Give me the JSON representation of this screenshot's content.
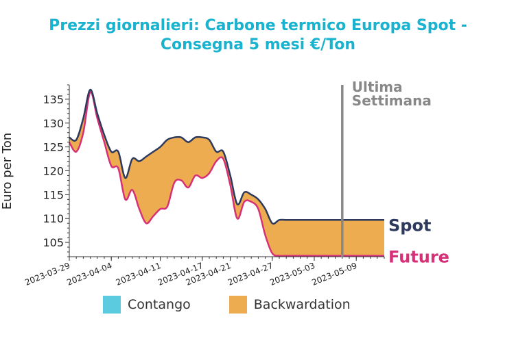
{
  "colors": {
    "title": "#1ab3cf",
    "spot": "#2d3a5e",
    "future": "#d63177",
    "contango": "#5bcbe0",
    "backwardation": "#ecac4f",
    "annotation": "#888888"
  },
  "chart_data": {
    "type": "area",
    "title_line1": "Prezzi giornalieri: Carbone termico Europa Spot -",
    "title_line2": "Consegna 5 mesi €/Ton",
    "ylabel": "Euro per Ton",
    "ylim": [
      102,
      138
    ],
    "yticks": [
      105,
      110,
      115,
      120,
      125,
      130,
      135
    ],
    "xlim": [
      "2023-03-29",
      "2023-05-13"
    ],
    "xticks": [
      "2023-03-29",
      "2023-04-04",
      "2023-04-11",
      "2023-04-17",
      "2023-04-21",
      "2023-04-27",
      "2023-05-03",
      "2023-05-09"
    ],
    "grid": false,
    "annotation": {
      "line1": "Ultima",
      "line2": "Settimana",
      "x": "2023-05-07"
    },
    "end_labels": {
      "spot": "Spot",
      "future": "Future"
    },
    "legend": {
      "placement": "bottom",
      "contango": "Contango",
      "backwardation": "Backwardation"
    },
    "x": [
      "2023-03-29",
      "2023-03-30",
      "2023-03-31",
      "2023-04-01",
      "2023-04-02",
      "2023-04-03",
      "2023-04-04",
      "2023-04-05",
      "2023-04-06",
      "2023-04-07",
      "2023-04-08",
      "2023-04-09",
      "2023-04-10",
      "2023-04-11",
      "2023-04-12",
      "2023-04-13",
      "2023-04-14",
      "2023-04-15",
      "2023-04-16",
      "2023-04-17",
      "2023-04-18",
      "2023-04-19",
      "2023-04-20",
      "2023-04-21",
      "2023-04-22",
      "2023-04-23",
      "2023-04-24",
      "2023-04-25",
      "2023-04-26",
      "2023-04-27",
      "2023-04-28",
      "2023-04-29",
      "2023-04-30",
      "2023-05-01",
      "2023-05-02",
      "2023-05-03",
      "2023-05-04",
      "2023-05-05",
      "2023-05-06",
      "2023-05-07",
      "2023-05-08",
      "2023-05-09",
      "2023-05-10",
      "2023-05-11",
      "2023-05-12",
      "2023-05-13"
    ],
    "series": [
      {
        "name": "Spot",
        "values": [
          127,
          126.5,
          131,
          137,
          132,
          127.5,
          124,
          124,
          118.5,
          122.5,
          122,
          123,
          124,
          125,
          126.5,
          127,
          127,
          126,
          127,
          127,
          126.5,
          124,
          124,
          119,
          113,
          115.5,
          115,
          114,
          112,
          109,
          109.7,
          109.7,
          109.7,
          109.7,
          109.7,
          109.7,
          109.7,
          109.7,
          109.7,
          109.7,
          109.7,
          109.7,
          109.7,
          109.7,
          109.7,
          109.7
        ]
      },
      {
        "name": "Future",
        "values": [
          126,
          124,
          128,
          136.5,
          131,
          126,
          121,
          120.5,
          114,
          116,
          112,
          109,
          110.5,
          112,
          112.5,
          117.5,
          118,
          116.5,
          119,
          118.5,
          119.5,
          122,
          122.5,
          117,
          110,
          113.5,
          113.5,
          112,
          106.5,
          102.7,
          102.2,
          102.2,
          102.2,
          102.2,
          102.2,
          102.2,
          102.2,
          102.2,
          102.2,
          102.2,
          102.2,
          102.2,
          102.2,
          102.2,
          102.2,
          102.2
        ]
      }
    ]
  }
}
